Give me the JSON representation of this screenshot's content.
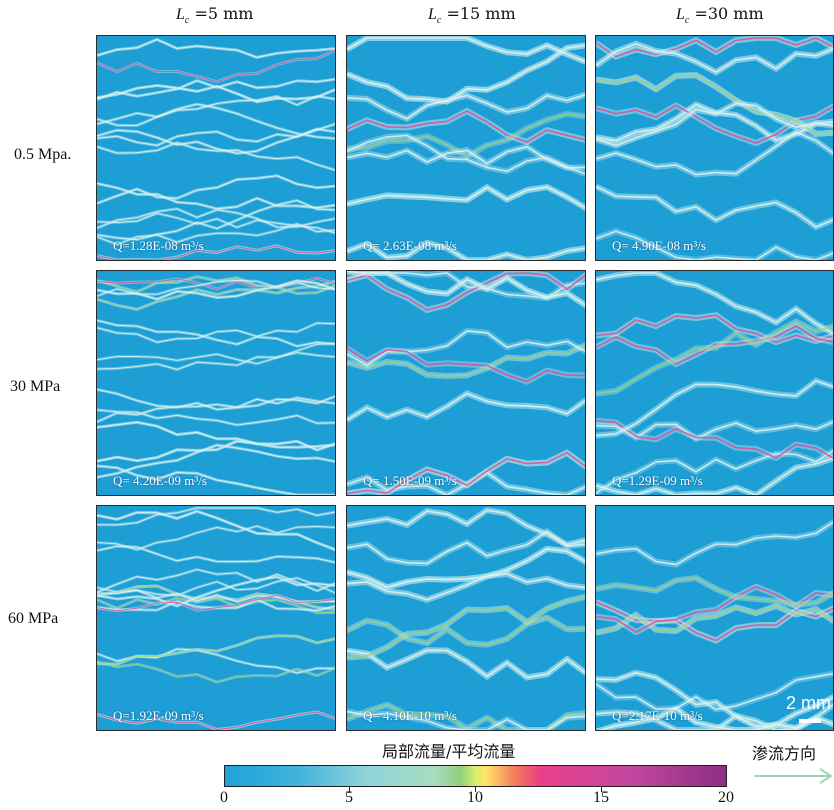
{
  "columns": [
    {
      "symbol": "L",
      "sub": "c",
      "value": "=5 mm"
    },
    {
      "symbol": "L",
      "sub": "c",
      "value": "=15 mm"
    },
    {
      "symbol": "L",
      "sub": "c",
      "value": "=30 mm"
    }
  ],
  "rows": [
    {
      "label": "0.5 Mpa."
    },
    {
      "label": "30 MPa"
    },
    {
      "label": "60 MPa"
    }
  ],
  "panels": [
    [
      "Q=1.28E-08 m³/s",
      "Q= 2.63E-08 m³/s",
      "Q= 4.90E-08 m³/s"
    ],
    [
      "Q= 4.20E-09 m³/s",
      "Q= 1.50E-09 m³/s",
      "Q=1.29E-09 m³/s"
    ],
    [
      "Q=1.92E-09 m³/s",
      "Q= 4.10E-10 m³/s",
      "Q=2.17E-10 m³/s"
    ]
  ],
  "scale_bar": {
    "label": "2 mm"
  },
  "colorbar": {
    "title": "局部流量/平均流量",
    "ticks": [
      "0",
      "5",
      "10",
      "15",
      "20"
    ],
    "stops": [
      "#1fa2da",
      "#8fd3da",
      "#8fd07a",
      "#ffe36a",
      "#ea3f88",
      "#8e2f83"
    ]
  },
  "flow_direction": {
    "label": "渗流方向"
  }
}
